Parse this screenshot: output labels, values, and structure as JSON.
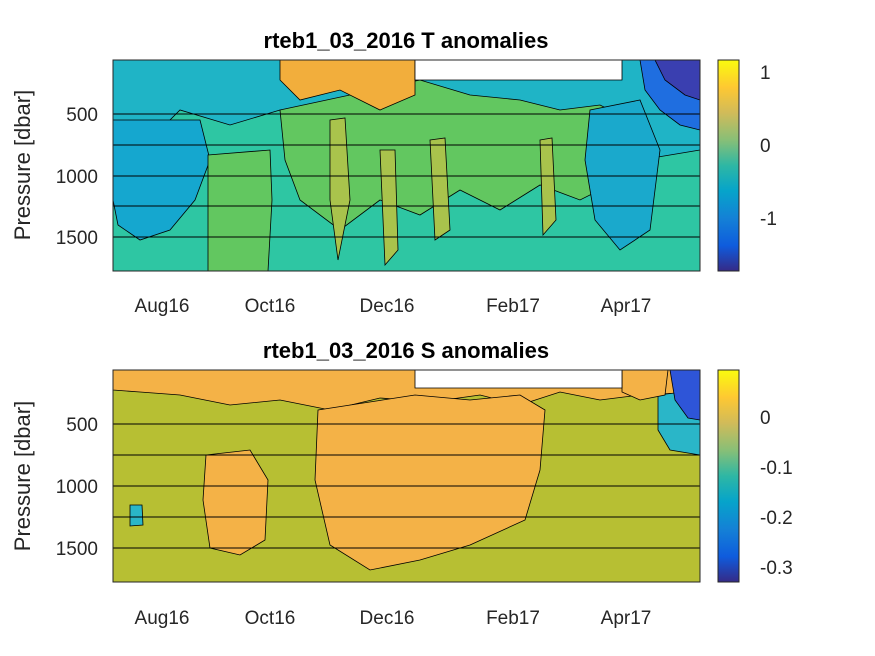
{
  "chart_data": [
    {
      "type": "heatmap",
      "title": "rteb1_03_2016 T anomalies",
      "xlabel": "",
      "ylabel": "Pressure [dbar]",
      "xticks": [
        "Aug16",
        "Oct16",
        "Dec16",
        "Feb17",
        "Apr17"
      ],
      "yticks": [
        "500",
        "1000",
        "1500"
      ],
      "ylim": [
        0,
        1800
      ],
      "y_reversed": true,
      "grid_pressures": [
        500,
        750,
        1000,
        1250,
        1500
      ],
      "colorbar": {
        "ticks": [
          "1",
          "0",
          "-1"
        ],
        "range": [
          -1.7,
          1.15
        ],
        "colormap": "parula"
      },
      "colors": {
        "base": "#2ec6a3",
        "low": "#1fb4c6",
        "high": "#f2ae3c",
        "mid": "#62c760",
        "olive": "#a9c34c"
      }
    },
    {
      "type": "heatmap",
      "title": "rteb1_03_2016 S anomalies",
      "xlabel": "",
      "ylabel": "Pressure [dbar]",
      "xticks": [
        "Aug16",
        "Oct16",
        "Dec16",
        "Feb17",
        "Apr17"
      ],
      "yticks": [
        "500",
        "1000",
        "1500"
      ],
      "ylim": [
        0,
        1800
      ],
      "y_reversed": true,
      "grid_pressures": [
        500,
        750,
        1000,
        1250,
        1500
      ],
      "colorbar": {
        "ticks": [
          "0",
          "-0.1",
          "-0.2",
          "-0.3"
        ],
        "range": [
          -0.34,
          0.09
        ],
        "colormap": "parula"
      },
      "colors": {
        "base": "#b7bf33",
        "high": "#f4b247",
        "low": "#2ab6c8",
        "deep": "#2e55d8"
      }
    }
  ]
}
